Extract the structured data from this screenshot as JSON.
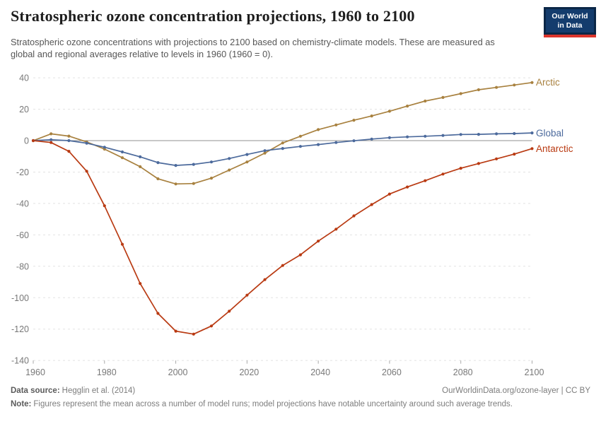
{
  "header": {
    "title": "Stratospheric ozone concentration projections, 1960 to 2100",
    "subtitle": "Stratospheric ozone concentrations with projections to 2100 based on chemistry-climate models. These are measured as global and regional averages relative to levels in 1960 (1960 = 0).",
    "logo_line1": "Our World",
    "logo_line2": "in Data",
    "logo_bg_color": "#143c6d",
    "logo_accent_color": "#dc352c"
  },
  "chart_data": {
    "type": "line",
    "title": "Stratospheric ozone concentration projections, 1960 to 2100",
    "xlabel": "",
    "ylabel": "",
    "xlim": [
      1960,
      2100
    ],
    "ylim": [
      -140,
      40
    ],
    "grid": "dashed horizontal gridlines, solid zero line",
    "legend_position": "labels at right end of each line",
    "xticks": [
      1960,
      1980,
      2000,
      2020,
      2040,
      2060,
      2080,
      2100
    ],
    "yticks": [
      40,
      20,
      0,
      -20,
      -40,
      -60,
      -80,
      -100,
      -120,
      -140
    ],
    "x": [
      1960,
      1965,
      1970,
      1975,
      1980,
      1985,
      1990,
      1995,
      2000,
      2005,
      2010,
      2015,
      2020,
      2025,
      2030,
      2035,
      2040,
      2045,
      2050,
      2055,
      2060,
      2065,
      2070,
      2075,
      2080,
      2085,
      2090,
      2095,
      2100
    ],
    "series": [
      {
        "name": "Arctic",
        "color": "#a8813f",
        "values": [
          0,
          4.3,
          2.9,
          -0.8,
          -5.4,
          -10.9,
          -16.6,
          -24.3,
          -27.6,
          -27.3,
          -23.9,
          -18.7,
          -13.6,
          -7.9,
          -1.5,
          2.8,
          7,
          10,
          13,
          15.7,
          18.7,
          22,
          25.2,
          27.5,
          29.9,
          32.4,
          33.9,
          35.4,
          37
        ]
      },
      {
        "name": "Global",
        "color": "#4c6a9c",
        "values": [
          0,
          0.6,
          0,
          -1.6,
          -4.2,
          -7.2,
          -10.3,
          -14,
          -15.8,
          -15.1,
          -13.6,
          -11.4,
          -8.8,
          -6.4,
          -5,
          -3.7,
          -2.5,
          -1.2,
          -0.1,
          1,
          1.9,
          2.4,
          2.8,
          3.3,
          3.9,
          4,
          4.3,
          4.5,
          4.9
        ]
      },
      {
        "name": "Antarctic",
        "color": "#b93a12",
        "values": [
          0,
          -1.2,
          -6.8,
          -19.5,
          -41.5,
          -66,
          -91,
          -110,
          -121.3,
          -123.2,
          -118,
          -108.6,
          -98.4,
          -88.5,
          -79.5,
          -72.7,
          -64,
          -56.4,
          -47.9,
          -40.7,
          -34,
          -29.5,
          -25.5,
          -21.3,
          -17.6,
          -14.6,
          -11.6,
          -8.6,
          -5.1
        ]
      }
    ],
    "grid_color": "#e2e2e2",
    "zero_line_color": "#909090",
    "axis_text_color": "#787878"
  },
  "footer": {
    "source_label": "Data source:",
    "source_text": "Hegglin et al. (2014)",
    "attribution": "OurWorldinData.org/ozone-layer | CC BY",
    "note_label": "Note:",
    "note_text": "Figures represent the mean across a number of model runs; model projections have notable uncertainty around such average trends."
  }
}
